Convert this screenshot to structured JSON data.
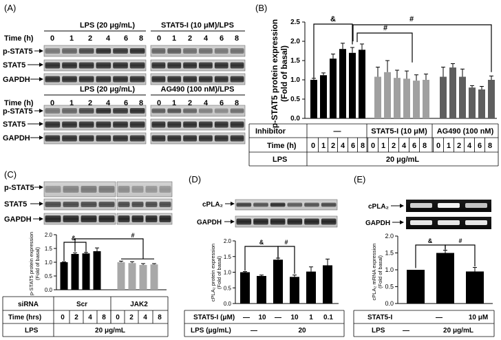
{
  "panels": {
    "A": {
      "label": "(A)",
      "top_left_title": "LPS (20 μg/mL)",
      "top_right_title": "STAT5-I (10 μM)/LPS",
      "bottom_left_title": "LPS (20 μg/mL)",
      "bottom_right_title": "AG490 (100 nM)/LPS",
      "time_label": "Time (h)",
      "times": [
        "0",
        "1",
        "2",
        "4",
        "6",
        "8"
      ],
      "rows": [
        "p-STAT5",
        "STAT5",
        "GAPDH"
      ]
    },
    "C": {
      "label": "(C)",
      "rows": [
        "p-STAT5",
        "STAT5",
        "GAPDH"
      ]
    },
    "D": {
      "label": "(D)",
      "rows": [
        "cPLA₂",
        "GAPDH"
      ]
    },
    "E": {
      "label": "(E)",
      "rows": [
        "cPLA₂",
        "GAPDH"
      ]
    }
  },
  "chart_data": [
    {
      "panel": "B",
      "panel_label": "(B)",
      "type": "bar",
      "ylabel_line1": "p-STAT5 protein expression",
      "ylabel_line2": "(Fold of basal)",
      "ylim": [
        0,
        2.5
      ],
      "yticks": [
        "0.0",
        "0.5",
        "1.0",
        "1.5",
        "2.0",
        "2.5"
      ],
      "series": [
        {
          "name": "—",
          "color": "#000000",
          "values": [
            1.0,
            1.12,
            1.55,
            1.8,
            1.7,
            1.78
          ],
          "errors": [
            0.04,
            0.06,
            0.12,
            0.15,
            0.14,
            0.15
          ]
        },
        {
          "name": "STAT5-I (10 μM)",
          "color": "#a0a0a0",
          "values": [
            1.08,
            1.2,
            1.05,
            1.03,
            0.98,
            1.0
          ],
          "errors": [
            0.25,
            0.3,
            0.2,
            0.2,
            0.15,
            0.15
          ]
        },
        {
          "name": "AG490 (100 nM)",
          "color": "#5e5e5e",
          "values": [
            1.08,
            1.32,
            1.08,
            0.8,
            0.75,
            1.0
          ],
          "errors": [
            0.25,
            0.1,
            0.2,
            0.05,
            0.08,
            0.1
          ]
        }
      ],
      "significance": [
        "&",
        "#",
        "#"
      ],
      "table": {
        "inhibitor_label": "Inhibitor",
        "inhibitors": [
          "—",
          "STAT5-I (10 μM)",
          "AG490 (100 nM)"
        ],
        "time_label": "Time (h)",
        "times": [
          "0",
          "1",
          "2",
          "4",
          "6",
          "8"
        ],
        "lps_label": "LPS",
        "lps_value": "20 μg/mL"
      }
    },
    {
      "panel": "C",
      "type": "bar",
      "ylabel_line1": "p-STAT5 protein expression",
      "ylabel_line2": "(Fold of basal)",
      "ylim": [
        0,
        2.0
      ],
      "yticks": [
        "0.0",
        "0.5",
        "1.0",
        "1.5",
        "2.0"
      ],
      "series": [
        {
          "name": "Scr",
          "color": "#000000",
          "values": [
            1.0,
            1.3,
            1.32,
            1.4
          ],
          "errors": [
            0.02,
            0.04,
            0.04,
            0.12
          ]
        },
        {
          "name": "JAK2",
          "color": "#a8a8a8",
          "values": [
            1.0,
            0.97,
            0.9,
            0.92
          ],
          "errors": [
            0.04,
            0.05,
            0.05,
            0.03
          ]
        }
      ],
      "significance": [
        "&",
        "#"
      ],
      "table": {
        "sirna_label": "siRNA",
        "sirna": [
          "Scr",
          "JAK2"
        ],
        "time_label": "Time (hrs)",
        "times": [
          "0",
          "2",
          "4",
          "8"
        ],
        "lps_label": "LPS",
        "lps_value": "20 μg/mL"
      }
    },
    {
      "panel": "D",
      "type": "bar",
      "ylabel_line1": "cPLA₂ protein expression",
      "ylabel_line2": "(Fold of basal)",
      "ylim": [
        0,
        2.0
      ],
      "yticks": [
        "0.0",
        "0.5",
        "1.0",
        "1.5",
        "2.0"
      ],
      "categories": [
        "1",
        "2",
        "3",
        "4",
        "5",
        "6"
      ],
      "values": [
        1.0,
        0.88,
        1.4,
        0.85,
        1.02,
        1.22
      ],
      "errors": [
        0.02,
        0.03,
        0.05,
        0.06,
        0.15,
        0.2
      ],
      "color": "#000000",
      "significance": [
        "&",
        "#"
      ],
      "table": {
        "stat5_label": "STAT5-I (μM)",
        "stat5": [
          "—",
          "10",
          "—",
          "10",
          "1",
          "0.1"
        ],
        "lps_label": "LPS (μg/mL)",
        "lps": [
          "—",
          "20"
        ]
      }
    },
    {
      "panel": "E",
      "type": "bar",
      "ylabel_line1": "cPLA₂ mRNA expression",
      "ylabel_line2": "(Fold of basal)",
      "ylim": [
        0,
        2.0
      ],
      "yticks": [
        "0.0",
        "0.5",
        "1.0",
        "1.5",
        "2.0"
      ],
      "categories": [
        "1",
        "2",
        "3"
      ],
      "values": [
        1.0,
        1.5,
        0.95
      ],
      "errors": [
        0.0,
        0.08,
        0.12
      ],
      "color": "#000000",
      "significance": [
        "&",
        "#"
      ],
      "table": {
        "stat5_label": "STAT5-I",
        "stat5": [
          "—",
          "10 μM"
        ],
        "lps_label": "LPS",
        "lps": [
          "—",
          "20 μg/mL"
        ]
      }
    }
  ]
}
